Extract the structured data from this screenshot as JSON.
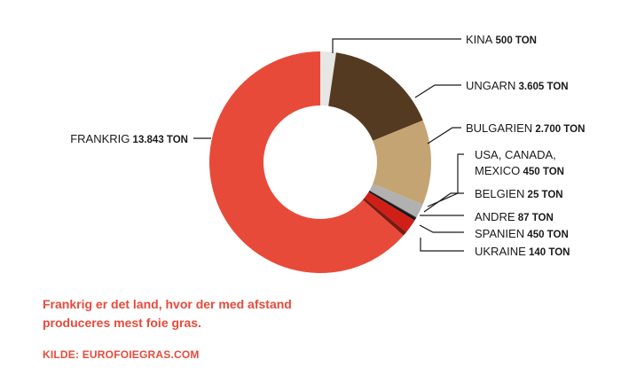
{
  "chart_data": {
    "type": "pie",
    "donut": true,
    "unit": "TON",
    "slices": [
      {
        "label": "KINA",
        "value_text": "500 TON",
        "value": 500,
        "color": "#e6e6e4"
      },
      {
        "label": "UNGARN",
        "value_text": "3.605 TON",
        "value": 3605,
        "color": "#553a22"
      },
      {
        "label": "BULGARIEN",
        "value_text": "2.700 TON",
        "value": 2700,
        "color": "#c4a473"
      },
      {
        "label": "USA, CANADA, MEXICO",
        "label_lines": [
          "USA, CANADA,",
          "MEXICO"
        ],
        "value_text": "450 TON",
        "value": 450,
        "color": "#b1b1b1"
      },
      {
        "label": "BELGIEN",
        "value_text": "25 TON",
        "value": 25,
        "color": "#3c3c3c"
      },
      {
        "label": "ANDRE",
        "value_text": "87 TON",
        "value": 87,
        "color": "#161616"
      },
      {
        "label": "SPANIEN",
        "value_text": "450 TON",
        "value": 450,
        "color": "#d01f16"
      },
      {
        "label": "UKRAINE",
        "value_text": "140 TON",
        "value": 140,
        "color": "#7a1a12"
      },
      {
        "label": "FRANKRIG",
        "value_text": "13.843 TON",
        "value": 13843,
        "color": "#e84a3a"
      }
    ]
  },
  "caption": "Frankrig er det land, hvor der med afstand produceres mest foie gras.",
  "source": "KILDE: EUROFOIEGRAS.COM"
}
